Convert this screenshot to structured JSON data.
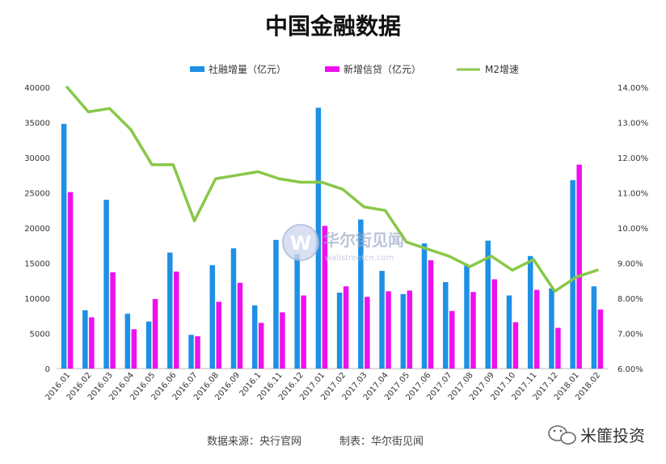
{
  "chart_data": {
    "type": "bar",
    "title": "中国金融数据",
    "categories": [
      "2016.01",
      "2016.02",
      "2016.03",
      "2016.04",
      "2016.05",
      "2016.06",
      "2016.07",
      "2016.08",
      "2016.09",
      "2016.1",
      "2016.11",
      "2016.12",
      "2017.01",
      "2017.02",
      "2017.03",
      "2017.04",
      "2017.05",
      "2017.06",
      "2017.07",
      "2017.08",
      "2017.09",
      "2017.10",
      "2017.11",
      "2017.12",
      "2018.01",
      "2018.02"
    ],
    "series": [
      {
        "name": "社融增量（亿元）",
        "kind": "bar",
        "axis": "left",
        "color": "#1e90e6",
        "values": [
          34800,
          8300,
          24000,
          7800,
          6700,
          16500,
          4800,
          14700,
          17100,
          9000,
          18300,
          16300,
          37100,
          10800,
          21200,
          13900,
          10600,
          17800,
          12300,
          14700,
          18200,
          10400,
          16000,
          11400,
          26800,
          11700
        ]
      },
      {
        "name": "新增信贷（亿元）",
        "kind": "bar",
        "axis": "left",
        "color": "#ee11ee",
        "values": [
          25100,
          7300,
          13700,
          5600,
          9900,
          13800,
          4600,
          9500,
          12200,
          6500,
          8000,
          10400,
          20300,
          11700,
          10200,
          11000,
          11100,
          15400,
          8200,
          10900,
          12700,
          6600,
          11200,
          5800,
          29000,
          8400
        ]
      },
      {
        "name": "M2增速",
        "kind": "line",
        "axis": "right",
        "color": "#88c848",
        "values": [
          14.0,
          13.3,
          13.4,
          12.8,
          11.8,
          11.8,
          10.2,
          11.4,
          11.5,
          11.6,
          11.4,
          11.3,
          11.3,
          11.1,
          10.6,
          10.5,
          9.6,
          9.4,
          9.2,
          8.9,
          9.2,
          8.8,
          9.1,
          8.2,
          8.6,
          8.8
        ]
      }
    ],
    "y_left": {
      "min": 0,
      "max": 40000,
      "ticks": [
        "0",
        "5000",
        "10000",
        "15000",
        "20000",
        "25000",
        "30000",
        "35000",
        "40000"
      ]
    },
    "y_right": {
      "min": 6.0,
      "max": 14.0,
      "ticks": [
        "6.00%",
        "7.00%",
        "8.00%",
        "9.00%",
        "10.00%",
        "11.00%",
        "12.00%",
        "13.00%",
        "14.00%"
      ]
    },
    "legend_position": "top-center",
    "grid": false
  },
  "footer": {
    "source": "数据来源：央行官网",
    "maker": "制表：华尔街见闻"
  },
  "watermark": {
    "text": "华尔街见闻",
    "sub": "wallstreetcn.com",
    "letter": "W"
  },
  "brand": {
    "text": "米篚投资"
  }
}
